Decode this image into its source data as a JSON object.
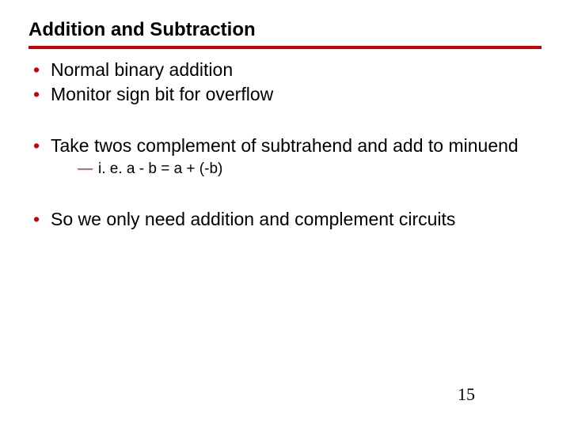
{
  "title": "Addition and Subtraction",
  "rule_color": "#cc0000",
  "bullets": {
    "b1": "Normal binary addition",
    "b2": "Monitor sign bit for overflow",
    "b3": "Take twos complement of subtrahend and add to minuend",
    "b3_sub": "i. e. a - b = a + (-b)",
    "b4": "So we only need addition and complement circuits"
  },
  "page_number": "15"
}
